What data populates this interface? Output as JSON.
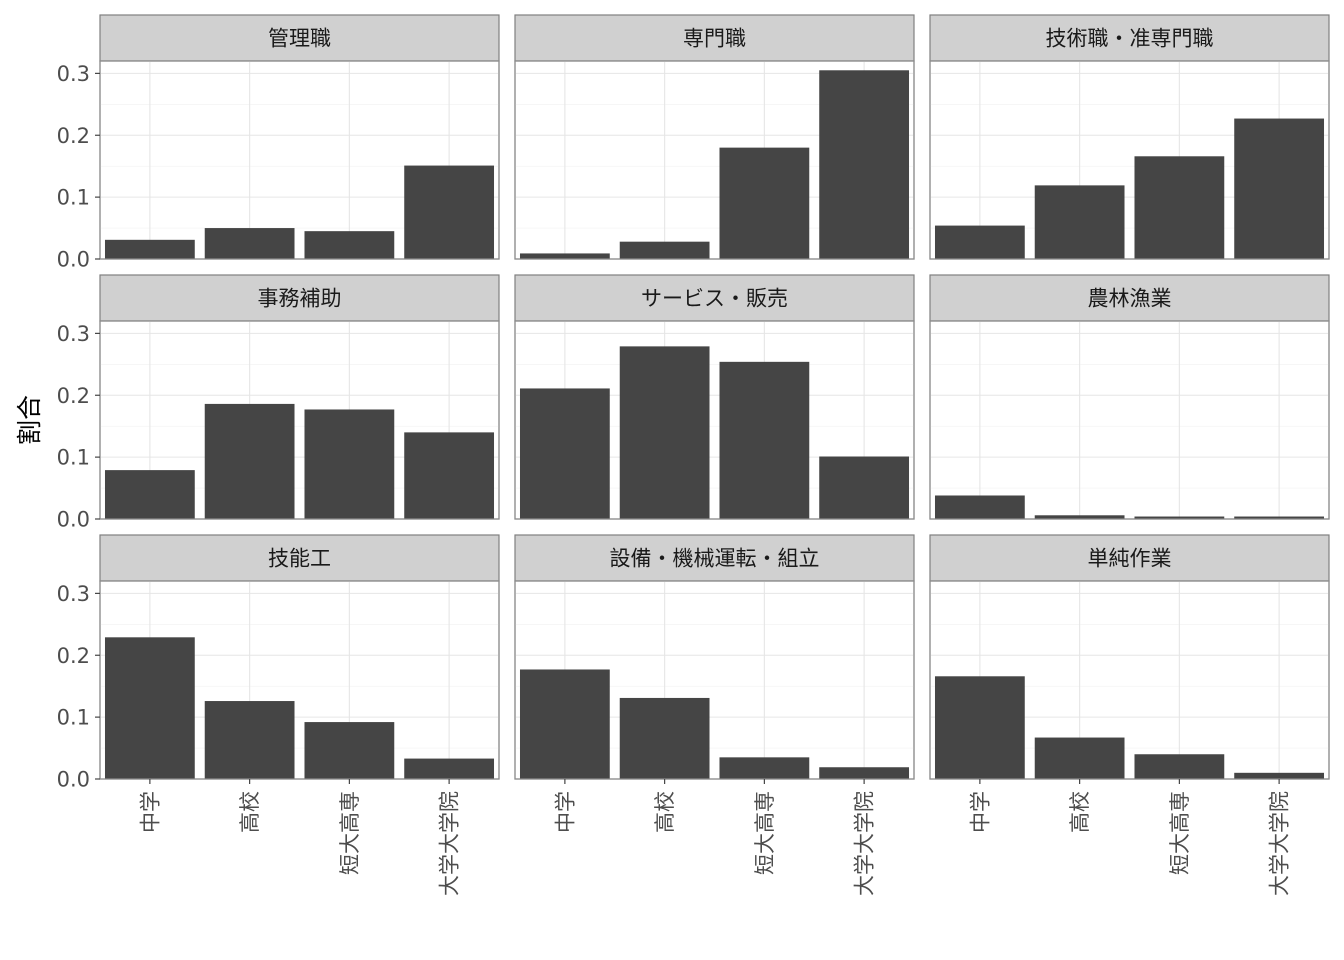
{
  "chart_data": {
    "type": "bar",
    "ylabel": "割合",
    "xlabel": "",
    "categories": [
      "中学",
      "高校",
      "短大高専",
      "大学大学院"
    ],
    "ylim": [
      0,
      0.32
    ],
    "yticks": [
      0.0,
      0.1,
      0.2,
      0.3
    ],
    "ytick_labels": [
      "0.0",
      "0.1",
      "0.2",
      "0.3"
    ],
    "grid": true,
    "facets": [
      {
        "name": "管理職",
        "values": [
          0.031,
          0.05,
          0.045,
          0.151
        ]
      },
      {
        "name": "専門職",
        "values": [
          0.009,
          0.028,
          0.18,
          0.305
        ]
      },
      {
        "name": "技術職・准専門職",
        "values": [
          0.054,
          0.119,
          0.166,
          0.227
        ]
      },
      {
        "name": "事務補助",
        "values": [
          0.079,
          0.186,
          0.177,
          0.14
        ]
      },
      {
        "name": "サービス・販売",
        "values": [
          0.211,
          0.279,
          0.254,
          0.101
        ]
      },
      {
        "name": "農林漁業",
        "values": [
          0.038,
          0.006,
          0.004,
          0.004
        ]
      },
      {
        "name": "技能工",
        "values": [
          0.229,
          0.126,
          0.092,
          0.033
        ]
      },
      {
        "name": "設備・機械運転・組立",
        "values": [
          0.177,
          0.131,
          0.035,
          0.019
        ]
      },
      {
        "name": "単純作業",
        "values": [
          0.166,
          0.067,
          0.04,
          0.01
        ]
      }
    ],
    "colors": {
      "bar": "#454545",
      "strip": "#d0d0d0"
    }
  }
}
